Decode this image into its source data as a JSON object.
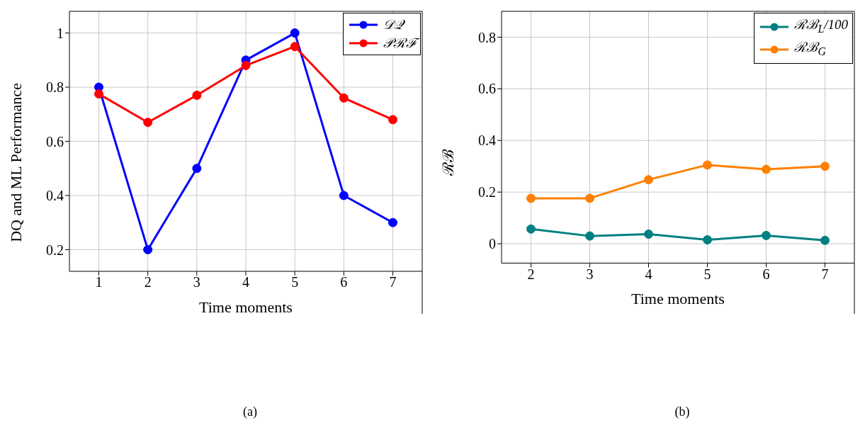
{
  "chart_data": [
    {
      "type": "line",
      "xlabel": "Time moments",
      "ylabel": "DQ and ML Performance",
      "x": [
        1,
        2,
        3,
        4,
        5,
        6,
        7
      ],
      "series": [
        {
          "name": "𝒟𝒬",
          "color": "#0000ff",
          "values": [
            0.8,
            0.2,
            0.5,
            0.9,
            1.0,
            0.4,
            0.3
          ]
        },
        {
          "name": "𝒫ℛℱ",
          "color": "#ff0000",
          "values": [
            0.775,
            0.67,
            0.77,
            0.88,
            0.95,
            0.76,
            0.68
          ]
        }
      ],
      "xlim": [
        0.4,
        7.6
      ],
      "xticks": [
        1,
        2,
        3,
        4,
        5,
        6,
        7
      ],
      "ylim": [
        0.12,
        1.08
      ],
      "yticks": [
        0.2,
        0.4,
        0.6,
        0.8,
        1
      ],
      "grid": true,
      "legend": "top right",
      "marker": "circle",
      "line_style": "solid",
      "annotations": [
        "(a)"
      ]
    },
    {
      "type": "line",
      "xlabel": "Time moments",
      "ylabel": "ℛℬ",
      "x": [
        2,
        3,
        4,
        5,
        6,
        7
      ],
      "series": [
        {
          "name": "ℛℬ$_{L}$/100",
          "color": "#008080",
          "values": [
            0.057,
            0.03,
            0.037,
            0.015,
            0.032,
            0.013
          ]
        },
        {
          "name": "ℛℬ$_{G}$",
          "color": "#ff8000",
          "values": [
            0.176,
            0.176,
            0.248,
            0.305,
            0.288,
            0.3
          ]
        }
      ],
      "xlim": [
        1.5,
        7.5
      ],
      "xticks": [
        2,
        3,
        4,
        5,
        6,
        7
      ],
      "ylim": [
        -0.075,
        0.9
      ],
      "yticks": [
        0,
        0.2,
        0.4,
        0.6,
        0.8
      ],
      "grid": true,
      "legend": "top right",
      "marker": "circle",
      "line_style": "solid",
      "annotations": [
        "(b)"
      ]
    }
  ]
}
